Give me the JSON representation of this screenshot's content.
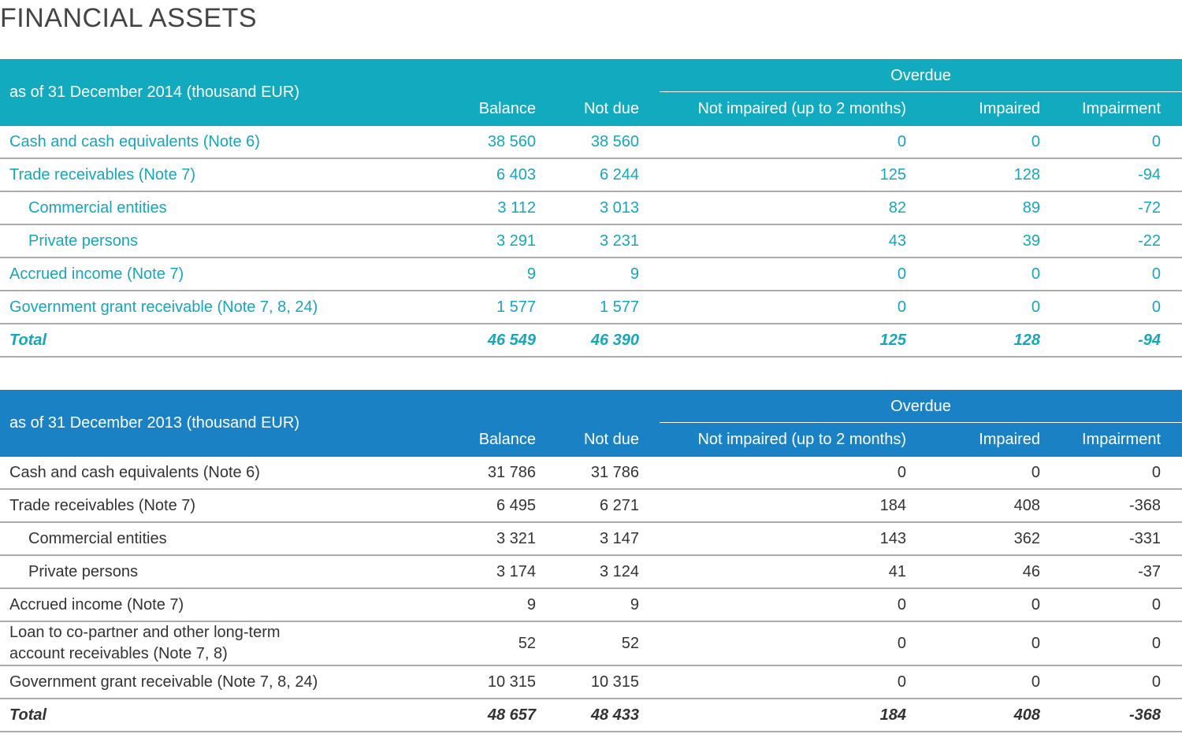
{
  "title": "FINANCIAL ASSETS",
  "tables": [
    {
      "caption": "as of 31 December 2014 (thousand EUR)",
      "group_header": "Overdue",
      "columns": [
        "Balance",
        "Not due",
        "Not impaired (up to 2 months)",
        "Impaired",
        "Impairment"
      ],
      "rows": [
        {
          "label": "Cash and cash equivalents (Note 6)",
          "cells": [
            "38 560",
            "38 560",
            "0",
            "0",
            "0"
          ]
        },
        {
          "label": "Trade receivables (Note 7)",
          "cells": [
            "6 403",
            "6 244",
            "125",
            "128",
            "-94"
          ]
        },
        {
          "label": "Commercial entities",
          "indent": true,
          "cells": [
            "3 112",
            "3 013",
            "82",
            "89",
            "-72"
          ]
        },
        {
          "label": "Private persons",
          "indent": true,
          "cells": [
            "3 291",
            "3 231",
            "43",
            "39",
            "-22"
          ]
        },
        {
          "label": "Accrued income (Note 7)",
          "cells": [
            "9",
            "9",
            "0",
            "0",
            "0"
          ]
        },
        {
          "label": "Government grant receivable (Note 7, 8, 24)",
          "cells": [
            "1 577",
            "1 577",
            "0",
            "0",
            "0"
          ]
        },
        {
          "label": "Total",
          "total": true,
          "cells": [
            "46 549",
            "46 390",
            "125",
            "128",
            "-94"
          ]
        }
      ]
    },
    {
      "caption": "as of 31 December 2013 (thousand EUR)",
      "group_header": "Overdue",
      "columns": [
        "Balance",
        "Not due",
        "Not impaired (up to 2 months)",
        "Impaired",
        "Impairment"
      ],
      "rows": [
        {
          "label": "Cash and cash equivalents (Note 6)",
          "cells": [
            "31 786",
            "31 786",
            "0",
            "0",
            "0"
          ]
        },
        {
          "label": "Trade receivables (Note 7)",
          "cells": [
            "6 495",
            "6 271",
            "184",
            "408",
            "-368"
          ]
        },
        {
          "label": "Commercial entities",
          "indent": true,
          "cells": [
            "3 321",
            "3 147",
            "143",
            "362",
            "-331"
          ]
        },
        {
          "label": "Private persons",
          "indent": true,
          "cells": [
            "3 174",
            "3 124",
            "41",
            "46",
            "-37"
          ]
        },
        {
          "label": "Accrued income (Note 7)",
          "cells": [
            "9",
            "9",
            "0",
            "0",
            "0"
          ]
        },
        {
          "label": "Loan to co-partner and other long-term\naccount receivables (Note 7, 8)",
          "cells": [
            "52",
            "52",
            "0",
            "0",
            "0"
          ]
        },
        {
          "label": "Government grant receivable (Note 7, 8, 24)",
          "cells": [
            "10 315",
            "10 315",
            "0",
            "0",
            "0"
          ]
        },
        {
          "label": "Total",
          "total": true,
          "cells": [
            "48 657",
            "48 433",
            "184",
            "408",
            "-368"
          ]
        }
      ]
    }
  ]
}
